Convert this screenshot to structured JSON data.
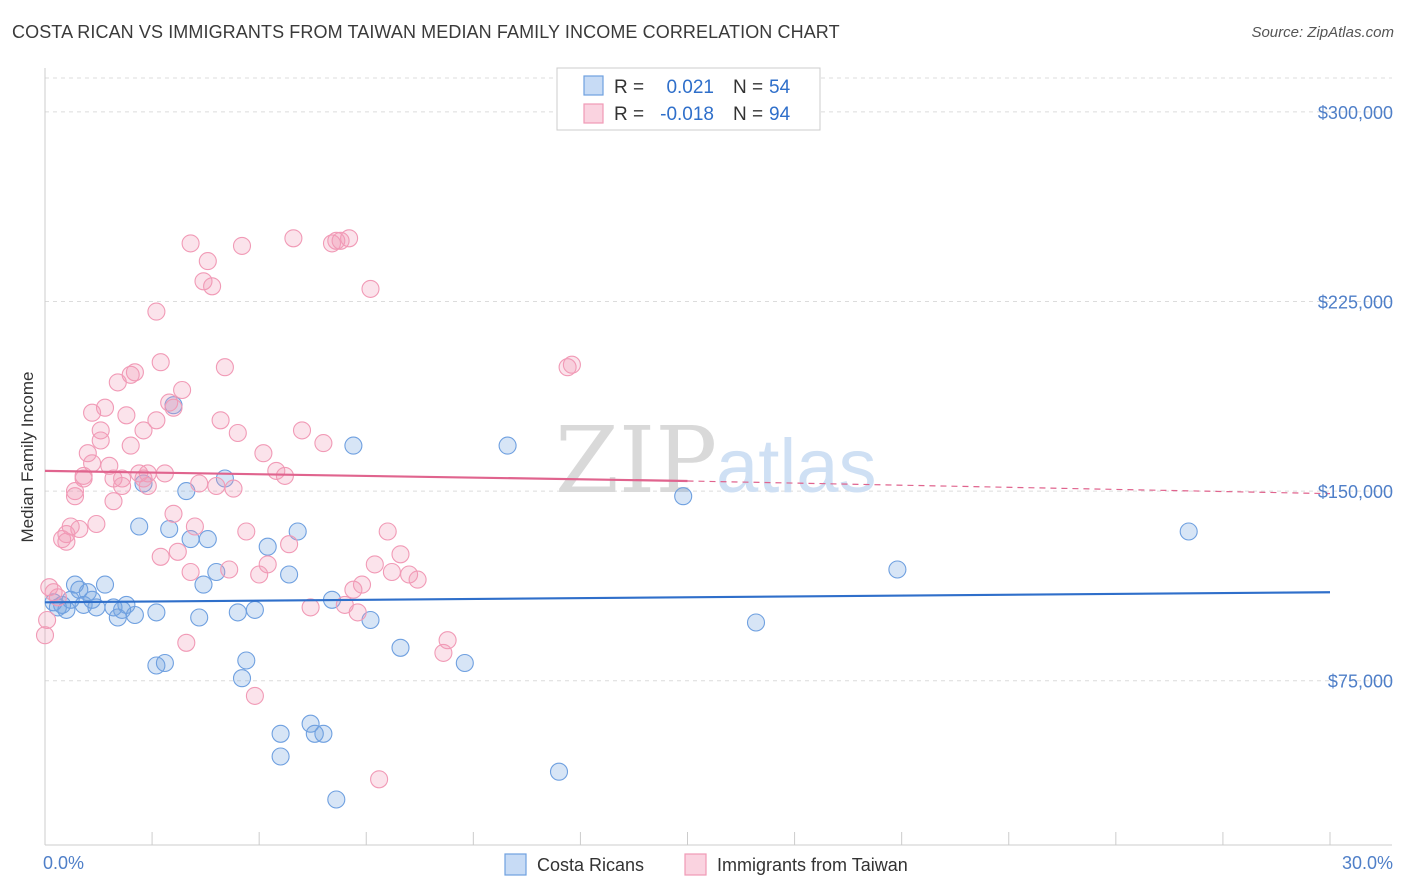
{
  "header": {
    "title": "COSTA RICAN VS IMMIGRANTS FROM TAIWAN MEDIAN FAMILY INCOME CORRELATION CHART",
    "source": "Source: ZipAtlas.com"
  },
  "watermark": {
    "zip": "ZIP",
    "atlas": "atlas"
  },
  "stats_legend": {
    "rows": [
      {
        "r_label": "R =",
        "r_value": "0.021",
        "n_label": "N =",
        "n_value": "54",
        "color": "#6fa0e0"
      },
      {
        "r_label": "R =",
        "r_value": "-0.018",
        "n_label": "N =",
        "n_value": "94",
        "color": "#f19ab6"
      }
    ]
  },
  "chart_data": {
    "type": "scatter",
    "title": "COSTA RICAN VS IMMIGRANTS FROM TAIWAN MEDIAN FAMILY INCOME CORRELATION CHART",
    "xlabel": "",
    "ylabel": "Median Family Income",
    "x_tick_labels": [
      "0.0%",
      "30.0%"
    ],
    "y_tick_labels": [
      "$75,000",
      "$150,000",
      "$225,000",
      "$300,000"
    ],
    "y_ticks": [
      75000,
      150000,
      225000,
      300000
    ],
    "xlim": [
      0,
      30
    ],
    "ylim": [
      10000,
      315000
    ],
    "grid": true,
    "legend_position": "bottom",
    "series": [
      {
        "name": "Costa Ricans",
        "color": "#6fa0e0",
        "trend": {
          "x": [
            0,
            30
          ],
          "y": [
            106000,
            110000
          ]
        },
        "points": [
          [
            0.2,
            106000
          ],
          [
            0.3,
            104000
          ],
          [
            0.4,
            105000
          ],
          [
            0.5,
            103000
          ],
          [
            0.6,
            107000
          ],
          [
            0.7,
            113000
          ],
          [
            0.8,
            111000
          ],
          [
            0.9,
            105000
          ],
          [
            1.0,
            110000
          ],
          [
            1.1,
            107000
          ],
          [
            1.2,
            104000
          ],
          [
            1.4,
            113000
          ],
          [
            1.6,
            104000
          ],
          [
            1.7,
            100000
          ],
          [
            1.8,
            103000
          ],
          [
            1.9,
            105000
          ],
          [
            2.1,
            101000
          ],
          [
            2.2,
            136000
          ],
          [
            2.3,
            153000
          ],
          [
            2.6,
            102000
          ],
          [
            2.6,
            81000
          ],
          [
            2.8,
            82000
          ],
          [
            2.9,
            135000
          ],
          [
            3.0,
            184000
          ],
          [
            3.3,
            150000
          ],
          [
            3.4,
            131000
          ],
          [
            3.6,
            100000
          ],
          [
            3.7,
            113000
          ],
          [
            3.8,
            131000
          ],
          [
            4.0,
            118000
          ],
          [
            4.2,
            155000
          ],
          [
            4.5,
            102000
          ],
          [
            4.6,
            76000
          ],
          [
            4.7,
            83000
          ],
          [
            4.9,
            103000
          ],
          [
            5.2,
            128000
          ],
          [
            5.5,
            54000
          ],
          [
            5.5,
            45000
          ],
          [
            5.7,
            117000
          ],
          [
            5.9,
            134000
          ],
          [
            6.2,
            58000
          ],
          [
            6.3,
            54000
          ],
          [
            6.5,
            54000
          ],
          [
            6.7,
            107000
          ],
          [
            6.8,
            28000
          ],
          [
            7.2,
            168000
          ],
          [
            7.6,
            99000
          ],
          [
            8.3,
            88000
          ],
          [
            9.8,
            82000
          ],
          [
            10.8,
            168000
          ],
          [
            12.0,
            39000
          ],
          [
            14.9,
            148000
          ],
          [
            16.6,
            98000
          ],
          [
            19.9,
            119000
          ],
          [
            26.7,
            134000
          ]
        ]
      },
      {
        "name": "Immigrants from Taiwan",
        "color": "#f19ab6",
        "trend": {
          "x": [
            0,
            15
          ],
          "y": [
            158000,
            154000
          ],
          "dashed_to": [
            30,
            149000
          ]
        },
        "points": [
          [
            0.0,
            93000
          ],
          [
            0.05,
            99000
          ],
          [
            0.1,
            112000
          ],
          [
            0.2,
            110000
          ],
          [
            0.3,
            108000
          ],
          [
            0.4,
            131000
          ],
          [
            0.5,
            130000
          ],
          [
            0.5,
            133000
          ],
          [
            0.6,
            136000
          ],
          [
            0.7,
            150000
          ],
          [
            0.7,
            148000
          ],
          [
            0.8,
            135000
          ],
          [
            0.9,
            155000
          ],
          [
            0.9,
            156000
          ],
          [
            1.0,
            165000
          ],
          [
            1.1,
            161000
          ],
          [
            1.1,
            181000
          ],
          [
            1.2,
            137000
          ],
          [
            1.3,
            170000
          ],
          [
            1.3,
            174000
          ],
          [
            1.4,
            183000
          ],
          [
            1.5,
            160000
          ],
          [
            1.6,
            146000
          ],
          [
            1.6,
            155000
          ],
          [
            1.7,
            193000
          ],
          [
            1.8,
            155000
          ],
          [
            1.8,
            152000
          ],
          [
            1.9,
            180000
          ],
          [
            2.0,
            196000
          ],
          [
            2.0,
            168000
          ],
          [
            2.1,
            197000
          ],
          [
            2.2,
            157000
          ],
          [
            2.3,
            174000
          ],
          [
            2.3,
            155000
          ],
          [
            2.4,
            157000
          ],
          [
            2.4,
            152000
          ],
          [
            2.6,
            221000
          ],
          [
            2.6,
            178000
          ],
          [
            2.7,
            201000
          ],
          [
            2.7,
            124000
          ],
          [
            2.8,
            157000
          ],
          [
            2.9,
            185000
          ],
          [
            3.0,
            183000
          ],
          [
            3.0,
            141000
          ],
          [
            3.1,
            126000
          ],
          [
            3.2,
            190000
          ],
          [
            3.3,
            90000
          ],
          [
            3.4,
            248000
          ],
          [
            3.4,
            118000
          ],
          [
            3.5,
            136000
          ],
          [
            3.6,
            153000
          ],
          [
            3.7,
            233000
          ],
          [
            3.8,
            241000
          ],
          [
            3.9,
            231000
          ],
          [
            4.0,
            152000
          ],
          [
            4.1,
            178000
          ],
          [
            4.2,
            199000
          ],
          [
            4.3,
            119000
          ],
          [
            4.4,
            151000
          ],
          [
            4.5,
            173000
          ],
          [
            4.6,
            247000
          ],
          [
            4.7,
            134000
          ],
          [
            4.9,
            69000
          ],
          [
            5.0,
            117000
          ],
          [
            5.1,
            165000
          ],
          [
            5.2,
            121000
          ],
          [
            5.4,
            158000
          ],
          [
            5.6,
            156000
          ],
          [
            5.7,
            129000
          ],
          [
            5.8,
            250000
          ],
          [
            6.0,
            174000
          ],
          [
            6.2,
            104000
          ],
          [
            6.5,
            169000
          ],
          [
            6.7,
            248000
          ],
          [
            6.8,
            249000
          ],
          [
            6.9,
            249000
          ],
          [
            7.0,
            105000
          ],
          [
            7.1,
            250000
          ],
          [
            7.2,
            111000
          ],
          [
            7.3,
            102000
          ],
          [
            7.4,
            113000
          ],
          [
            7.6,
            230000
          ],
          [
            7.7,
            121000
          ],
          [
            7.8,
            36000
          ],
          [
            8.0,
            134000
          ],
          [
            8.1,
            118000
          ],
          [
            8.3,
            125000
          ],
          [
            8.5,
            117000
          ],
          [
            8.7,
            115000
          ],
          [
            9.3,
            86000
          ],
          [
            9.4,
            91000
          ],
          [
            12.2,
            199000
          ],
          [
            12.3,
            200000
          ]
        ]
      }
    ]
  },
  "bottom_legend": {
    "items": [
      {
        "label": "Costa Ricans",
        "color": "#6fa0e0"
      },
      {
        "label": "Immigrants from Taiwan",
        "color": "#f19ab6"
      }
    ]
  }
}
